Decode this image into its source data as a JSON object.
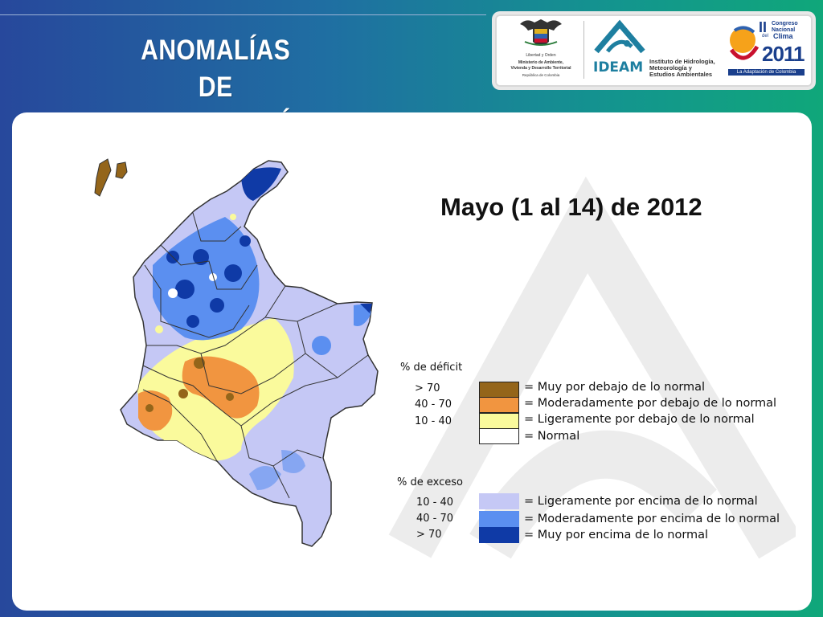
{
  "title": "ANOMALÍAS DE PRECIPITACIÓN",
  "title_lines": [
    "ANOMALÍAS DE",
    "PRECIPITACIÓN"
  ],
  "subtitle": "Mayo (1 al 14)  de 2012",
  "logos": {
    "ministry": {
      "motto": "Libertad y Orden",
      "name_line1": "Ministerio de Ambiente,",
      "name_line2": "Vivienda y Desarrollo Territorial",
      "country": "República de Colombia"
    },
    "ideam": {
      "acronym": "IDEAM",
      "line1": "Instituto de Hidrología,",
      "line2": "Meteorología y",
      "line3": "Estudios Ambientales"
    },
    "congreso": {
      "roman": "II",
      "line1": "Congreso",
      "line2": "Nacional",
      "line3": "Clima",
      "prefix": "del",
      "year": "2011",
      "tagline": "La Adaptación de Colombia"
    }
  },
  "legend": {
    "deficit_heading": "% de déficit",
    "deficit": [
      {
        "range": "> 70",
        "label": "= Muy por debajo de lo normal",
        "color": "#94651a"
      },
      {
        "range": "40 -  70",
        "label": "= Moderadamente por debajo de lo normal",
        "color": "#f19540"
      },
      {
        "range": "10 -  40",
        "label": "= Ligeramente por debajo de lo normal",
        "color": "#fafa9c"
      },
      {
        "range": "",
        "label": "= Normal",
        "color": "#ffffff"
      }
    ],
    "excess_heading": "% de exceso",
    "excess": [
      {
        "range": "10 -  40",
        "label": "= Ligeramente por encima de lo normal",
        "color": "#c5c8f5"
      },
      {
        "range": "40 -  70",
        "label": "= Moderadamente por encima de lo normal",
        "color": "#5b8ff0"
      },
      {
        "range": "> 70",
        "label": "= Muy por encima de lo normal",
        "color": "#0f3aa6"
      }
    ]
  },
  "colors": {
    "background_start": "#27489c",
    "background_end": "#10a77a",
    "title": "#ffffff"
  }
}
